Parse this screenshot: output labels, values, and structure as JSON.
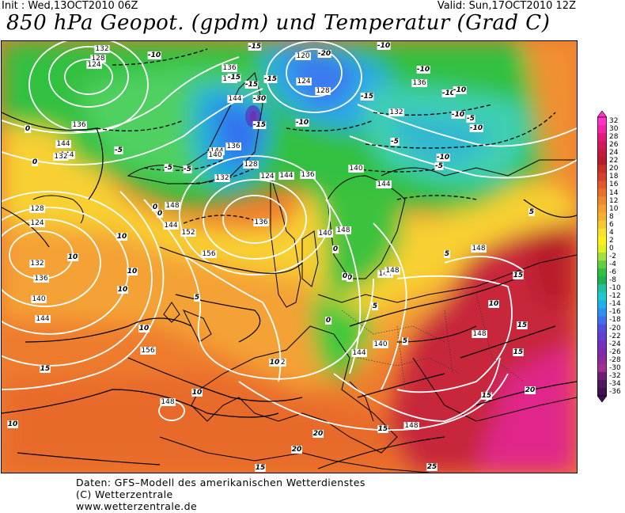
{
  "header": {
    "init": "Init : Wed,13OCT2010 06Z",
    "valid": "Valid: Sun,17OCT2010 12Z",
    "title": "850 hPa Geopot. (gpdm) und Temperatur (Grad C)"
  },
  "footer": {
    "line1": "Daten: GFS–Modell des amerikanischen Wetterdienstes",
    "line2": "(C) Wetterzentrale",
    "line3": "www.wetterzentrale.de"
  },
  "legend": {
    "values": [
      "32",
      "30",
      "28",
      "26",
      "24",
      "22",
      "20",
      "18",
      "16",
      "14",
      "12",
      "10",
      "8",
      "6",
      "4",
      "2",
      "0",
      "-2",
      "-4",
      "-6",
      "-8",
      "-10",
      "-12",
      "-14",
      "-16",
      "-18",
      "-20",
      "-22",
      "-24",
      "-26",
      "-28",
      "-30",
      "-32",
      "-34",
      "-36"
    ],
    "colors": [
      "#ff33cc",
      "#f5249f",
      "#e6197a",
      "#d11a5c",
      "#c41a40",
      "#b81c2c",
      "#c83028",
      "#d6402a",
      "#e25a2a",
      "#ea7030",
      "#ef8a30",
      "#f4a030",
      "#f6b030",
      "#f8c830",
      "#fae030",
      "#fff020",
      "#e0f020",
      "#a0e040",
      "#60d040",
      "#30c040",
      "#20b050",
      "#20c0a0",
      "#20c8d0",
      "#20b0e8",
      "#3090f0",
      "#4070f0",
      "#5050e0",
      "#6040d0",
      "#7030c0",
      "#8028b0",
      "#9028a0",
      "#a03090",
      "#702070",
      "#501860",
      "#401050"
    ]
  },
  "map_labels": {
    "geopotential": [
      "132",
      "128",
      "124",
      "136",
      "120",
      "124",
      "128",
      "140",
      "136",
      "144",
      "136",
      "144",
      "140",
      "132",
      "128",
      "124",
      "144",
      "136",
      "140",
      "144",
      "132",
      "136",
      "148",
      "152",
      "156",
      "144",
      "148",
      "144",
      "144",
      "132",
      "128",
      "124",
      "132",
      "136",
      "140",
      "144",
      "148",
      "148",
      "156",
      "140",
      "144",
      "148",
      "152",
      "148",
      "148",
      "144",
      "140",
      "136"
    ],
    "temperature": [
      "-10",
      "-15",
      "-20",
      "-15",
      "-10",
      "-10",
      "-15",
      "-10",
      "-10",
      "-30",
      "-10",
      "-15",
      "-15",
      "-10",
      "-5",
      "-5",
      "-10",
      "-5",
      "-15",
      "-10",
      "-5",
      "0",
      "0",
      "0",
      "0",
      "-5",
      "-5",
      "0",
      "0",
      "0",
      "0",
      "5",
      "5",
      "5",
      "5",
      "10",
      "10",
      "10",
      "10",
      "10",
      "10",
      "10",
      "15",
      "15",
      "15",
      "15",
      "15",
      "20",
      "20",
      "20",
      "25",
      "15",
      "10",
      "5",
      "15",
      "10"
    ]
  }
}
